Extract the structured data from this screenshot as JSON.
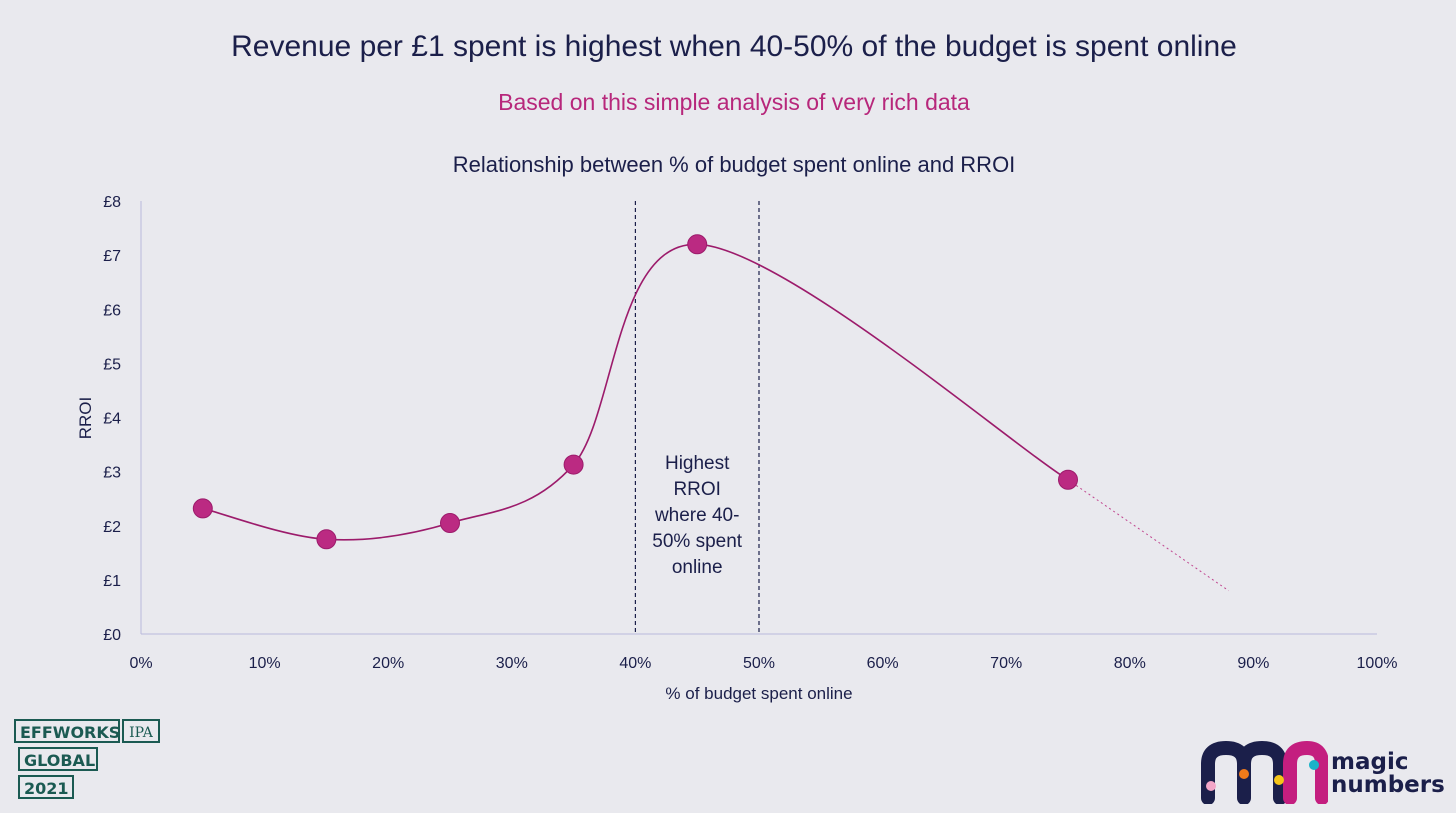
{
  "headline": "Revenue per £1 spent is highest when 40-50% of the budget is spent online",
  "subheadline": "Based on this simple analysis of very rich data",
  "chart_data": {
    "type": "line",
    "title": "Relationship between % of budget spent online and RROI",
    "xlabel": "% of budget spent online",
    "ylabel": "RROI",
    "x": [
      5,
      15,
      25,
      35,
      45,
      75
    ],
    "series": [
      {
        "values": [
          2.32,
          1.75,
          2.05,
          3.13,
          7.2,
          2.85
        ],
        "color": "#9c1b6b",
        "marker_color": "#bb2a82"
      }
    ],
    "trend_extension": {
      "x": [
        75,
        88
      ],
      "y": [
        2.85,
        0.8
      ],
      "style": "dotted"
    },
    "xlim": [
      0,
      100
    ],
    "ylim": [
      0,
      8
    ],
    "x_ticks": [
      "0%",
      "10%",
      "20%",
      "30%",
      "40%",
      "50%",
      "60%",
      "70%",
      "80%",
      "90%",
      "100%"
    ],
    "y_ticks": [
      "£0",
      "£1",
      "£2",
      "£3",
      "£4",
      "£5",
      "£6",
      "£7",
      "£8"
    ],
    "grid": false,
    "reference_lines": [
      40,
      50
    ],
    "annotation": [
      "Highest",
      "RROI",
      "where 40-",
      "50% spent",
      "online"
    ]
  },
  "logos": {
    "effworks": {
      "line1": "EFFWORKS",
      "ipa": "IPA",
      "line2": "GLOBAL",
      "line3": "2021"
    },
    "magic_numbers": {
      "line1": "magic",
      "line2": "numbers"
    }
  },
  "colors": {
    "background": "#e9e9ee",
    "navy": "#1b1f4a",
    "magenta": "#b7277b",
    "effworks_green": "#1b5a52"
  }
}
